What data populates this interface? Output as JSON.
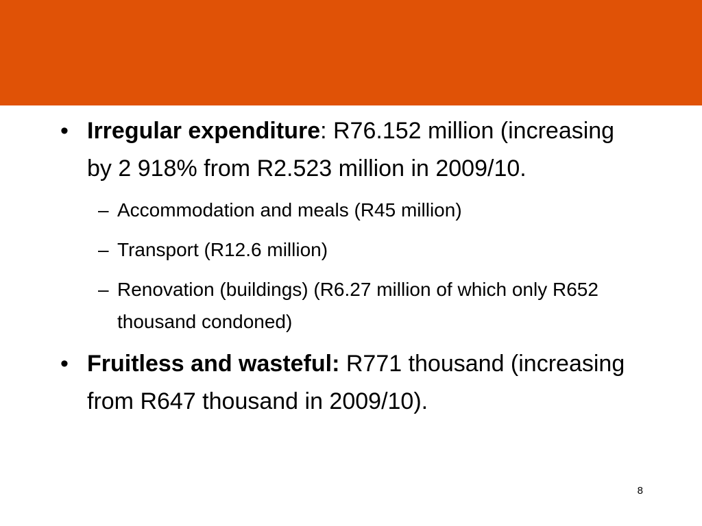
{
  "slide": {
    "header_color": "#e05206",
    "page_number": "8"
  },
  "bullets": [
    {
      "bold": "Irregular expenditure",
      "text": ": R76.152 million (increasing by 2 918% from R2.523 million in 2009/10.",
      "subs": [
        "Accommodation and meals (R45 million)",
        "Transport (R12.6 million)",
        "Renovation (buildings) (R6.27 million of which only R652 thousand condoned)"
      ]
    },
    {
      "bold": "Fruitless and wasteful:",
      "text": " R771 thousand (increasing from R647 thousand in 2009/10)."
    }
  ]
}
